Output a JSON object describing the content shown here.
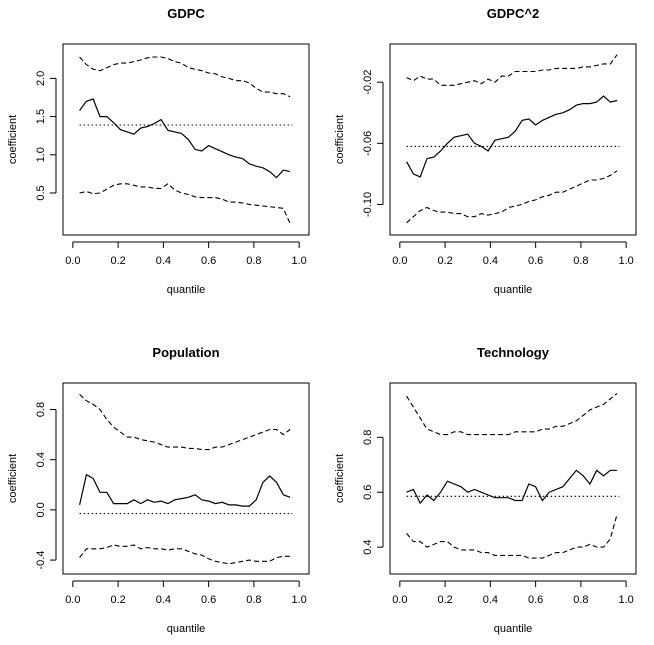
{
  "chart_data": [
    {
      "type": "line",
      "title": "GDPC",
      "xlabel": "quantile",
      "ylabel": "coefficient",
      "xlim": [
        0.0,
        1.0
      ],
      "ylim": [
        0.05,
        2.35
      ],
      "xticks": [
        0.0,
        0.2,
        0.4,
        0.6,
        0.8,
        1.0
      ],
      "xtick_labels": [
        "0.0",
        "0.2",
        "0.4",
        "0.6",
        "0.8",
        "1.0"
      ],
      "yticks": [
        0.5,
        1.0,
        1.5,
        2.0
      ],
      "ytick_labels": [
        "0.5",
        "1.0",
        "1.5",
        "2.0"
      ],
      "grid": false,
      "series": [
        {
          "style": "solid",
          "x": [
            0.03,
            0.06,
            0.09,
            0.12,
            0.15,
            0.18,
            0.21,
            0.24,
            0.27,
            0.3,
            0.33,
            0.36,
            0.39,
            0.42,
            0.45,
            0.48,
            0.51,
            0.54,
            0.57,
            0.6,
            0.63,
            0.66,
            0.69,
            0.72,
            0.75,
            0.78,
            0.81,
            0.84,
            0.87,
            0.9,
            0.93,
            0.96
          ],
          "y": [
            1.58,
            1.7,
            1.73,
            1.5,
            1.5,
            1.42,
            1.33,
            1.3,
            1.27,
            1.35,
            1.37,
            1.41,
            1.46,
            1.32,
            1.3,
            1.28,
            1.2,
            1.07,
            1.05,
            1.12,
            1.08,
            1.04,
            1.0,
            0.97,
            0.95,
            0.88,
            0.85,
            0.83,
            0.78,
            0.7,
            0.8,
            0.78
          ]
        },
        {
          "style": "dashed",
          "x": [
            0.03,
            0.06,
            0.09,
            0.12,
            0.15,
            0.18,
            0.21,
            0.24,
            0.27,
            0.3,
            0.33,
            0.36,
            0.39,
            0.42,
            0.45,
            0.48,
            0.51,
            0.54,
            0.57,
            0.6,
            0.63,
            0.66,
            0.69,
            0.72,
            0.75,
            0.78,
            0.81,
            0.84,
            0.87,
            0.9,
            0.93,
            0.96
          ],
          "y": [
            2.28,
            2.18,
            2.12,
            2.1,
            2.14,
            2.18,
            2.2,
            2.2,
            2.22,
            2.24,
            2.27,
            2.28,
            2.28,
            2.26,
            2.22,
            2.2,
            2.14,
            2.12,
            2.1,
            2.07,
            2.06,
            2.02,
            2.0,
            1.97,
            1.97,
            1.94,
            1.87,
            1.82,
            1.82,
            1.8,
            1.8,
            1.76
          ]
        },
        {
          "style": "dashed",
          "x": [
            0.03,
            0.06,
            0.09,
            0.12,
            0.15,
            0.18,
            0.21,
            0.24,
            0.27,
            0.3,
            0.33,
            0.36,
            0.39,
            0.42,
            0.45,
            0.48,
            0.51,
            0.54,
            0.57,
            0.6,
            0.63,
            0.66,
            0.69,
            0.72,
            0.75,
            0.78,
            0.81,
            0.84,
            0.87,
            0.9,
            0.93,
            0.96
          ],
          "y": [
            0.5,
            0.52,
            0.49,
            0.5,
            0.55,
            0.6,
            0.62,
            0.62,
            0.6,
            0.58,
            0.58,
            0.56,
            0.56,
            0.62,
            0.54,
            0.5,
            0.48,
            0.45,
            0.44,
            0.44,
            0.44,
            0.42,
            0.38,
            0.38,
            0.37,
            0.35,
            0.34,
            0.33,
            0.32,
            0.31,
            0.3,
            0.1
          ]
        },
        {
          "style": "dotted",
          "x": [
            0.03,
            0.97
          ],
          "y": [
            1.39,
            1.39
          ]
        }
      ]
    },
    {
      "type": "line",
      "title": "GDPC^2",
      "xlabel": "quantile",
      "ylabel": "coefficient",
      "xlim": [
        0.0,
        1.0
      ],
      "ylim": [
        -0.115,
        0.0
      ],
      "xticks": [
        0.0,
        0.2,
        0.4,
        0.6,
        0.8,
        1.0
      ],
      "xtick_labels": [
        "0.0",
        "0.2",
        "0.4",
        "0.6",
        "0.8",
        "1.0"
      ],
      "yticks": [
        -0.1,
        -0.06,
        -0.02
      ],
      "ytick_labels": [
        "-0.10",
        "-0.06",
        "-0.02"
      ],
      "grid": false,
      "series": [
        {
          "style": "solid",
          "x": [
            0.03,
            0.06,
            0.09,
            0.12,
            0.15,
            0.18,
            0.21,
            0.24,
            0.27,
            0.3,
            0.33,
            0.36,
            0.39,
            0.42,
            0.45,
            0.48,
            0.51,
            0.54,
            0.57,
            0.6,
            0.63,
            0.66,
            0.69,
            0.72,
            0.75,
            0.78,
            0.81,
            0.84,
            0.87,
            0.9,
            0.93,
            0.96
          ],
          "y": [
            -0.072,
            -0.08,
            -0.082,
            -0.07,
            -0.069,
            -0.065,
            -0.06,
            -0.056,
            -0.055,
            -0.054,
            -0.06,
            -0.062,
            -0.065,
            -0.058,
            -0.057,
            -0.056,
            -0.052,
            -0.045,
            -0.044,
            -0.048,
            -0.045,
            -0.043,
            -0.041,
            -0.04,
            -0.038,
            -0.035,
            -0.034,
            -0.034,
            -0.033,
            -0.029,
            -0.033,
            -0.032
          ]
        },
        {
          "style": "dashed",
          "x": [
            0.03,
            0.06,
            0.09,
            0.12,
            0.15,
            0.18,
            0.21,
            0.24,
            0.27,
            0.3,
            0.33,
            0.36,
            0.39,
            0.42,
            0.45,
            0.48,
            0.51,
            0.54,
            0.57,
            0.6,
            0.63,
            0.66,
            0.69,
            0.72,
            0.75,
            0.78,
            0.81,
            0.84,
            0.87,
            0.9,
            0.93,
            0.96
          ],
          "y": [
            -0.017,
            -0.019,
            -0.016,
            -0.018,
            -0.018,
            -0.022,
            -0.022,
            -0.022,
            -0.021,
            -0.02,
            -0.019,
            -0.021,
            -0.018,
            -0.02,
            -0.016,
            -0.016,
            -0.013,
            -0.013,
            -0.013,
            -0.013,
            -0.012,
            -0.012,
            -0.011,
            -0.011,
            -0.011,
            -0.011,
            -0.01,
            -0.01,
            -0.009,
            -0.008,
            -0.008,
            -0.002
          ]
        },
        {
          "style": "dashed",
          "x": [
            0.03,
            0.06,
            0.09,
            0.12,
            0.15,
            0.18,
            0.21,
            0.24,
            0.27,
            0.3,
            0.33,
            0.36,
            0.39,
            0.42,
            0.45,
            0.48,
            0.51,
            0.54,
            0.57,
            0.6,
            0.63,
            0.66,
            0.69,
            0.72,
            0.75,
            0.78,
            0.81,
            0.84,
            0.87,
            0.9,
            0.93,
            0.96
          ],
          "y": [
            -0.112,
            -0.108,
            -0.104,
            -0.102,
            -0.104,
            -0.105,
            -0.105,
            -0.106,
            -0.106,
            -0.108,
            -0.108,
            -0.106,
            -0.107,
            -0.106,
            -0.105,
            -0.102,
            -0.101,
            -0.1,
            -0.098,
            -0.097,
            -0.095,
            -0.094,
            -0.092,
            -0.092,
            -0.09,
            -0.088,
            -0.086,
            -0.084,
            -0.084,
            -0.083,
            -0.081,
            -0.078
          ]
        },
        {
          "style": "dotted",
          "x": [
            0.03,
            0.97
          ],
          "y": [
            -0.062,
            -0.062
          ]
        }
      ]
    },
    {
      "type": "line",
      "title": "Population",
      "xlabel": "quantile",
      "ylabel": "coefficient",
      "xlim": [
        0.0,
        1.0
      ],
      "ylim": [
        -0.45,
        0.95
      ],
      "xticks": [
        0.0,
        0.2,
        0.4,
        0.6,
        0.8,
        1.0
      ],
      "xtick_labels": [
        "0.0",
        "0.2",
        "0.4",
        "0.6",
        "0.8",
        "1.0"
      ],
      "yticks": [
        -0.4,
        0.0,
        0.4,
        0.8
      ],
      "ytick_labels": [
        "-0.4",
        "0.0",
        "0.4",
        "0.8"
      ],
      "grid": false,
      "series": [
        {
          "style": "solid",
          "x": [
            0.03,
            0.06,
            0.09,
            0.12,
            0.15,
            0.18,
            0.21,
            0.24,
            0.27,
            0.3,
            0.33,
            0.36,
            0.39,
            0.42,
            0.45,
            0.48,
            0.51,
            0.54,
            0.57,
            0.6,
            0.63,
            0.66,
            0.69,
            0.72,
            0.75,
            0.78,
            0.81,
            0.84,
            0.87,
            0.9,
            0.93,
            0.96
          ],
          "y": [
            0.04,
            0.28,
            0.25,
            0.14,
            0.14,
            0.05,
            0.05,
            0.05,
            0.08,
            0.05,
            0.08,
            0.06,
            0.07,
            0.05,
            0.08,
            0.09,
            0.1,
            0.12,
            0.08,
            0.07,
            0.05,
            0.06,
            0.04,
            0.04,
            0.03,
            0.03,
            0.08,
            0.22,
            0.27,
            0.22,
            0.12,
            0.1
          ]
        },
        {
          "style": "dashed",
          "x": [
            0.03,
            0.06,
            0.09,
            0.12,
            0.15,
            0.18,
            0.21,
            0.24,
            0.27,
            0.3,
            0.33,
            0.36,
            0.39,
            0.42,
            0.45,
            0.48,
            0.51,
            0.54,
            0.57,
            0.6,
            0.63,
            0.66,
            0.69,
            0.72,
            0.75,
            0.78,
            0.81,
            0.84,
            0.87,
            0.9,
            0.93,
            0.96
          ],
          "y": [
            0.92,
            0.87,
            0.84,
            0.8,
            0.72,
            0.66,
            0.62,
            0.58,
            0.58,
            0.56,
            0.55,
            0.54,
            0.52,
            0.5,
            0.5,
            0.5,
            0.49,
            0.49,
            0.48,
            0.48,
            0.5,
            0.5,
            0.52,
            0.54,
            0.56,
            0.58,
            0.6,
            0.62,
            0.64,
            0.64,
            0.6,
            0.64
          ]
        },
        {
          "style": "dashed",
          "x": [
            0.03,
            0.06,
            0.09,
            0.12,
            0.15,
            0.18,
            0.21,
            0.24,
            0.27,
            0.3,
            0.33,
            0.36,
            0.39,
            0.42,
            0.45,
            0.48,
            0.51,
            0.54,
            0.57,
            0.6,
            0.63,
            0.66,
            0.69,
            0.72,
            0.75,
            0.78,
            0.81,
            0.84,
            0.87,
            0.9,
            0.93,
            0.96
          ],
          "y": [
            -0.38,
            -0.31,
            -0.31,
            -0.31,
            -0.3,
            -0.28,
            -0.29,
            -0.29,
            -0.28,
            -0.31,
            -0.3,
            -0.31,
            -0.31,
            -0.32,
            -0.31,
            -0.31,
            -0.33,
            -0.35,
            -0.36,
            -0.39,
            -0.41,
            -0.42,
            -0.43,
            -0.42,
            -0.41,
            -0.4,
            -0.41,
            -0.41,
            -0.41,
            -0.38,
            -0.37,
            -0.37
          ]
        },
        {
          "style": "dotted",
          "x": [
            0.03,
            0.97
          ],
          "y": [
            -0.03,
            -0.03
          ]
        }
      ]
    },
    {
      "type": "line",
      "title": "Technology",
      "xlabel": "quantile",
      "ylabel": "coefficient",
      "xlim": [
        0.0,
        1.0
      ],
      "ylim": [
        0.33,
        0.97
      ],
      "xticks": [
        0.0,
        0.2,
        0.4,
        0.6,
        0.8,
        1.0
      ],
      "xtick_labels": [
        "0.0",
        "0.2",
        "0.4",
        "0.6",
        "0.8",
        "1.0"
      ],
      "yticks": [
        0.4,
        0.6,
        0.8
      ],
      "ytick_labels": [
        "0.4",
        "0.6",
        "0.8"
      ],
      "grid": false,
      "series": [
        {
          "style": "solid",
          "x": [
            0.03,
            0.06,
            0.09,
            0.12,
            0.15,
            0.18,
            0.21,
            0.24,
            0.27,
            0.3,
            0.33,
            0.36,
            0.39,
            0.42,
            0.45,
            0.48,
            0.51,
            0.54,
            0.57,
            0.6,
            0.63,
            0.66,
            0.69,
            0.72,
            0.75,
            0.78,
            0.81,
            0.84,
            0.87,
            0.9,
            0.93,
            0.96
          ],
          "y": [
            0.6,
            0.61,
            0.56,
            0.59,
            0.57,
            0.6,
            0.64,
            0.63,
            0.62,
            0.6,
            0.61,
            0.6,
            0.59,
            0.58,
            0.58,
            0.58,
            0.57,
            0.57,
            0.63,
            0.62,
            0.57,
            0.6,
            0.61,
            0.62,
            0.65,
            0.68,
            0.66,
            0.63,
            0.68,
            0.66,
            0.68,
            0.68
          ]
        },
        {
          "style": "dashed",
          "x": [
            0.03,
            0.06,
            0.09,
            0.12,
            0.15,
            0.18,
            0.21,
            0.24,
            0.27,
            0.3,
            0.33,
            0.36,
            0.39,
            0.42,
            0.45,
            0.48,
            0.51,
            0.54,
            0.57,
            0.6,
            0.63,
            0.66,
            0.69,
            0.72,
            0.75,
            0.78,
            0.81,
            0.84,
            0.87,
            0.9,
            0.93,
            0.96
          ],
          "y": [
            0.95,
            0.91,
            0.87,
            0.83,
            0.82,
            0.81,
            0.81,
            0.82,
            0.82,
            0.81,
            0.81,
            0.81,
            0.81,
            0.81,
            0.81,
            0.81,
            0.82,
            0.82,
            0.82,
            0.82,
            0.83,
            0.83,
            0.84,
            0.84,
            0.85,
            0.86,
            0.88,
            0.9,
            0.91,
            0.92,
            0.94,
            0.96
          ]
        },
        {
          "style": "dashed",
          "x": [
            0.03,
            0.06,
            0.09,
            0.12,
            0.15,
            0.18,
            0.21,
            0.24,
            0.27,
            0.3,
            0.33,
            0.36,
            0.39,
            0.42,
            0.45,
            0.48,
            0.51,
            0.54,
            0.57,
            0.6,
            0.63,
            0.66,
            0.69,
            0.72,
            0.75,
            0.78,
            0.81,
            0.84,
            0.87,
            0.9,
            0.93,
            0.96
          ],
          "y": [
            0.45,
            0.42,
            0.42,
            0.4,
            0.41,
            0.42,
            0.42,
            0.4,
            0.39,
            0.39,
            0.39,
            0.38,
            0.38,
            0.37,
            0.37,
            0.37,
            0.37,
            0.37,
            0.36,
            0.36,
            0.36,
            0.37,
            0.38,
            0.38,
            0.39,
            0.4,
            0.4,
            0.41,
            0.4,
            0.4,
            0.43,
            0.52
          ]
        },
        {
          "style": "dotted",
          "x": [
            0.03,
            0.97
          ],
          "y": [
            0.585,
            0.585
          ]
        }
      ]
    }
  ]
}
